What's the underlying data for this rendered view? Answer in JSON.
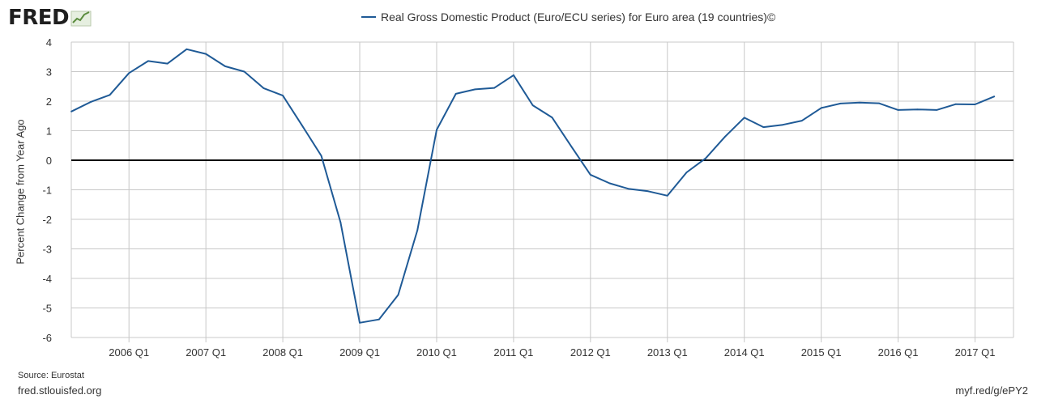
{
  "brand": {
    "logo_text": "FRED"
  },
  "legend": {
    "label": "Real Gross Domestic Product (Euro/ECU series) for Euro area (19 countries)©"
  },
  "footer": {
    "source": "Source: Eurostat",
    "site": "fred.stlouisfed.org",
    "short_url": "myf.red/g/ePY2"
  },
  "colors": {
    "series": "#1f5a96",
    "grid": "#c8c8c8",
    "zero_line": "#000000",
    "plot_bg": "#ffffff",
    "logo_line": "#5b8c3e"
  },
  "chart_data": {
    "type": "line",
    "title": "",
    "xlabel": "",
    "ylabel": "Percent Change from Year Ago",
    "ylim": [
      -6,
      4
    ],
    "yticks": [
      "4",
      "3",
      "2",
      "1",
      "0",
      "-1",
      "-2",
      "-3",
      "-4",
      "-5",
      "-6"
    ],
    "xticks": [
      "2006 Q1",
      "2007 Q1",
      "2008 Q1",
      "2009 Q1",
      "2010 Q1",
      "2011 Q1",
      "2012 Q1",
      "2013 Q1",
      "2014 Q1",
      "2015 Q1",
      "2016 Q1",
      "2017 Q1"
    ],
    "grid": true,
    "legend_position": "top-center",
    "series": [
      {
        "name": "Real Gross Domestic Product (Euro/ECU series) for Euro area (19 countries)",
        "x": [
          "2005 Q2",
          "2005 Q3",
          "2005 Q4",
          "2006 Q1",
          "2006 Q2",
          "2006 Q3",
          "2006 Q4",
          "2007 Q1",
          "2007 Q2",
          "2007 Q3",
          "2007 Q4",
          "2008 Q1",
          "2008 Q2",
          "2008 Q3",
          "2008 Q4",
          "2009 Q1",
          "2009 Q2",
          "2009 Q3",
          "2009 Q4",
          "2010 Q1",
          "2010 Q2",
          "2010 Q3",
          "2010 Q4",
          "2011 Q1",
          "2011 Q2",
          "2011 Q3",
          "2011 Q4",
          "2012 Q1",
          "2012 Q2",
          "2012 Q3",
          "2012 Q4",
          "2013 Q1",
          "2013 Q2",
          "2013 Q3",
          "2013 Q4",
          "2014 Q1",
          "2014 Q2",
          "2014 Q3",
          "2014 Q4",
          "2015 Q1",
          "2015 Q2",
          "2015 Q3",
          "2015 Q4",
          "2016 Q1",
          "2016 Q2",
          "2016 Q3",
          "2016 Q4",
          "2017 Q1",
          "2017 Q2"
        ],
        "values": [
          1.65,
          1.97,
          2.21,
          2.95,
          3.36,
          3.27,
          3.76,
          3.6,
          3.18,
          3.0,
          2.44,
          2.19,
          1.18,
          0.15,
          -2.1,
          -5.5,
          -5.39,
          -4.56,
          -2.37,
          1.03,
          2.25,
          2.4,
          2.45,
          2.88,
          1.86,
          1.45,
          0.47,
          -0.49,
          -0.78,
          -0.97,
          -1.05,
          -1.2,
          -0.41,
          0.07,
          0.8,
          1.44,
          1.12,
          1.2,
          1.34,
          1.77,
          1.92,
          1.95,
          1.93,
          1.7,
          1.72,
          1.7,
          1.9,
          1.89,
          2.16
        ]
      }
    ]
  }
}
